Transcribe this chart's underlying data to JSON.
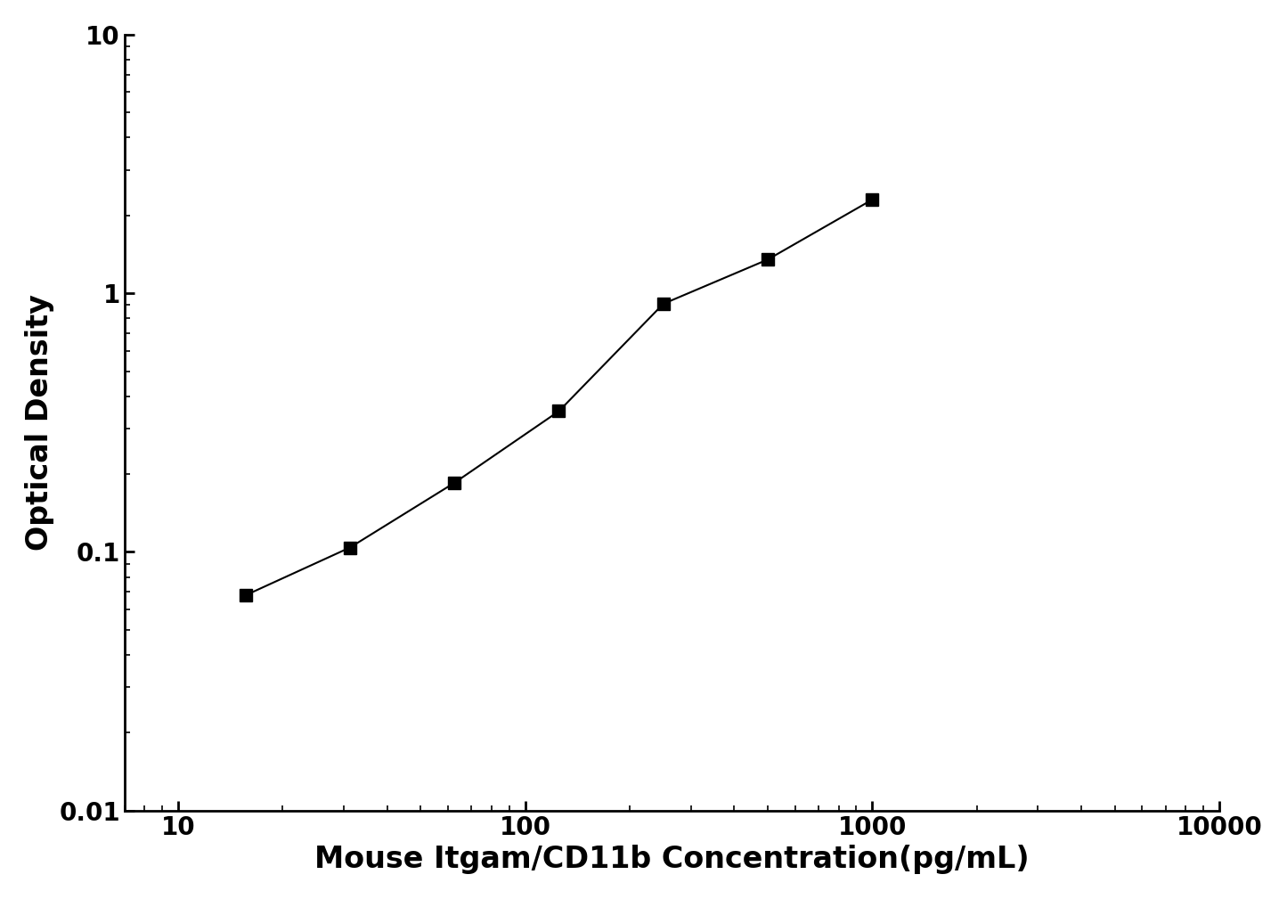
{
  "x": [
    15.625,
    31.25,
    62.5,
    125,
    250,
    500,
    1000
  ],
  "y": [
    0.068,
    0.104,
    0.185,
    0.35,
    0.91,
    1.35,
    2.3
  ],
  "xlim": [
    7,
    10000
  ],
  "ylim": [
    0.01,
    10
  ],
  "xlabel": "Mouse Itgam/CD11b Concentration(pg/mL)",
  "ylabel": "Optical Density",
  "line_color": "#000000",
  "marker": "s",
  "marker_color": "#000000",
  "marker_size": 10,
  "linewidth": 1.5,
  "xlabel_fontsize": 24,
  "ylabel_fontsize": 24,
  "tick_fontsize": 20,
  "background_color": "#ffffff",
  "axis_linewidth": 2.0,
  "yticks": [
    0.01,
    0.1,
    1,
    10
  ],
  "ytick_labels": [
    "0.01",
    "0.1",
    "1",
    "10"
  ],
  "xticks": [
    10,
    100,
    1000,
    10000
  ],
  "xtick_labels": [
    "10",
    "100",
    "1000",
    "10000"
  ]
}
